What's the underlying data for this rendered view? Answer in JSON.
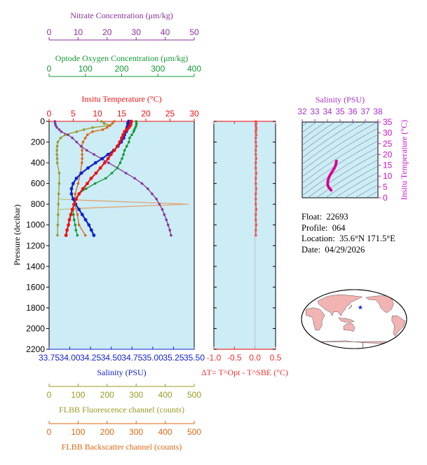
{
  "chart_data": [
    {
      "type": "line",
      "title": "",
      "ylabel": "Pressure (decibar)",
      "ylim": [
        0,
        2200
      ],
      "yticks": [
        0,
        200,
        400,
        600,
        800,
        1000,
        1200,
        1400,
        1600,
        1800,
        2000,
        2200
      ],
      "axes": {
        "temperature": {
          "label": "Insitu Temperature (°C)",
          "range": [
            0,
            30
          ],
          "ticks": [
            0,
            5,
            10,
            15,
            20,
            25,
            30
          ],
          "color": "#ee1111"
        },
        "oxygen": {
          "label": "Optode Oxygen Concentration (μm/kg)",
          "range": [
            0,
            400
          ],
          "ticks": [
            0,
            100,
            200,
            300,
            400
          ],
          "color": "#119933"
        },
        "nitrate": {
          "label": "Nitrate Concentration (μm/kg)",
          "range": [
            0,
            50
          ],
          "ticks": [
            0,
            10,
            20,
            30,
            40,
            50
          ],
          "color": "#883399"
        },
        "salinity": {
          "label": "Salinity (PSU)",
          "range": [
            33.75,
            35.5
          ],
          "ticks": [
            "33.75",
            "34.00",
            "34.25",
            "34.50",
            "34.75",
            "35.00",
            "35.25",
            "35.50"
          ],
          "color": "#1122cc"
        },
        "fluorescence": {
          "label": "FLBB Fluorescence channel (counts)",
          "range": [
            0,
            500
          ],
          "ticks": [
            0,
            100,
            200,
            300,
            400,
            500
          ],
          "color": "#999922"
        },
        "backscatter": {
          "label": "FLBB Backscatter channel (counts)",
          "range": [
            0,
            500
          ],
          "ticks": [
            0,
            100,
            200,
            300,
            400,
            500
          ],
          "color": "#dd6611"
        }
      },
      "series": [
        {
          "axis": "temperature",
          "color": "#ee1111",
          "values": [
            [
              17.0,
              0
            ],
            [
              16.9,
              20
            ],
            [
              16.8,
              40
            ],
            [
              16.5,
              60
            ],
            [
              16.0,
              80
            ],
            [
              15.6,
              100
            ],
            [
              15.3,
              130
            ],
            [
              15.0,
              160
            ],
            [
              14.6,
              200
            ],
            [
              14.1,
              240
            ],
            [
              13.5,
              280
            ],
            [
              12.8,
              320
            ],
            [
              12.2,
              360
            ],
            [
              11.5,
              400
            ],
            [
              10.6,
              450
            ],
            [
              9.7,
              500
            ],
            [
              8.7,
              550
            ],
            [
              7.9,
              600
            ],
            [
              7.0,
              650
            ],
            [
              6.2,
              700
            ],
            [
              5.6,
              750
            ],
            [
              5.2,
              800
            ],
            [
              4.8,
              850
            ],
            [
              4.5,
              900
            ],
            [
              4.2,
              950
            ],
            [
              4.0,
              1000
            ],
            [
              3.7,
              1050
            ],
            [
              3.5,
              1100
            ]
          ]
        },
        {
          "axis": "salinity",
          "color": "#1122cc",
          "values": [
            [
              34.71,
              0
            ],
            [
              34.7,
              20
            ],
            [
              34.7,
              40
            ],
            [
              34.69,
              60
            ],
            [
              34.69,
              80
            ],
            [
              34.68,
              100
            ],
            [
              34.66,
              130
            ],
            [
              34.65,
              160
            ],
            [
              34.62,
              200
            ],
            [
              34.58,
              240
            ],
            [
              34.53,
              280
            ],
            [
              34.46,
              320
            ],
            [
              34.39,
              360
            ],
            [
              34.31,
              400
            ],
            [
              34.22,
              450
            ],
            [
              34.14,
              500
            ],
            [
              34.08,
              550
            ],
            [
              34.04,
              600
            ],
            [
              34.02,
              650
            ],
            [
              34.02,
              700
            ],
            [
              34.04,
              750
            ],
            [
              34.07,
              800
            ],
            [
              34.11,
              850
            ],
            [
              34.15,
              900
            ],
            [
              34.19,
              950
            ],
            [
              34.23,
              1000
            ],
            [
              34.26,
              1050
            ],
            [
              34.29,
              1100
            ]
          ]
        },
        {
          "axis": "oxygen",
          "color": "#119933",
          "values": [
            [
              240,
              0
            ],
            [
              241,
              20
            ],
            [
              240,
              40
            ],
            [
              238,
              60
            ],
            [
              235,
              80
            ],
            [
              233,
              100
            ],
            [
              228,
              130
            ],
            [
              222,
              160
            ],
            [
              220,
              200
            ],
            [
              214,
              240
            ],
            [
              208,
              280
            ],
            [
              205,
              320
            ],
            [
              201,
              360
            ],
            [
              196,
              400
            ],
            [
              188,
              450
            ],
            [
              173,
              500
            ],
            [
              156,
              550
            ],
            [
              127,
              600
            ],
            [
              102,
              650
            ],
            [
              82,
              700
            ],
            [
              72,
              750
            ],
            [
              67,
              800
            ],
            [
              66,
              850
            ],
            [
              67,
              900
            ],
            [
              69,
              950
            ],
            [
              72,
              1000
            ],
            [
              74,
              1050
            ],
            [
              78,
              1100
            ]
          ]
        },
        {
          "axis": "nitrate",
          "color": "#883399",
          "values": [
            [
              2.0,
              0
            ],
            [
              2.1,
              20
            ],
            [
              2.3,
              40
            ],
            [
              2.7,
              60
            ],
            [
              3.5,
              80
            ],
            [
              4.2,
              100
            ],
            [
              6.5,
              130
            ],
            [
              8.0,
              160
            ],
            [
              9.5,
              200
            ],
            [
              11.0,
              240
            ],
            [
              13.0,
              280
            ],
            [
              15.5,
              320
            ],
            [
              18.0,
              360
            ],
            [
              20.5,
              400
            ],
            [
              23.5,
              450
            ],
            [
              26.5,
              500
            ],
            [
              29.5,
              550
            ],
            [
              32.0,
              600
            ],
            [
              34.0,
              650
            ],
            [
              35.5,
              700
            ],
            [
              37.0,
              750
            ],
            [
              38.0,
              800
            ],
            [
              39.0,
              850
            ],
            [
              39.7,
              900
            ],
            [
              40.4,
              950
            ],
            [
              41.0,
              1000
            ],
            [
              41.6,
              1050
            ],
            [
              42.0,
              1100
            ]
          ]
        },
        {
          "axis": "fluorescence",
          "color": "#999922",
          "values": [
            [
              180,
              0
            ],
            [
              190,
              20
            ],
            [
              210,
              40
            ],
            [
              150,
              60
            ],
            [
              120,
              80
            ],
            [
              95,
              100
            ],
            [
              55,
              130
            ],
            [
              40,
              160
            ],
            [
              30,
              200
            ],
            [
              28,
              240
            ],
            [
              27,
              280
            ],
            [
              27,
              320
            ],
            [
              28,
              360
            ],
            [
              28,
              400
            ],
            [
              35,
              500
            ],
            [
              35,
              600
            ],
            [
              33,
              700
            ],
            [
              32,
              800
            ],
            [
              31,
              900
            ],
            [
              30,
              1000
            ],
            [
              29,
              1100
            ]
          ]
        },
        {
          "axis": "backscatter",
          "color": "#dd6611",
          "values": [
            [
              225,
              0
            ],
            [
              218,
              20
            ],
            [
              210,
              40
            ],
            [
              200,
              60
            ],
            [
              185,
              80
            ],
            [
              150,
              100
            ],
            [
              132,
              130
            ],
            [
              125,
              160
            ],
            [
              117,
              200
            ],
            [
              112,
              240
            ],
            [
              114,
              280
            ],
            [
              114,
              320
            ],
            [
              114,
              360
            ],
            [
              113,
              400
            ],
            [
              108,
              500
            ],
            [
              100,
              600
            ],
            [
              90,
              700
            ],
            [
              88,
              800
            ],
            [
              98,
              900
            ],
            [
              103,
              1000
            ],
            [
              125,
              1100
            ]
          ]
        }
      ],
      "flbb_spike": {
        "pressure": 800,
        "fluorescence": 480
      }
    },
    {
      "type": "scatter",
      "xlabel": "ΔT= T^Opt - T^SBE (°C)",
      "xlim": [
        -1.0,
        0.5
      ],
      "xticks": [
        "-1.0",
        "-0.5",
        "0.0",
        "0.5"
      ],
      "color": "#ee5555",
      "dT_depths": [
        0,
        20,
        40,
        60,
        80,
        100,
        130,
        160,
        200,
        240,
        280,
        320,
        360,
        400,
        450,
        500,
        550,
        600,
        650,
        700,
        750,
        800,
        850,
        900,
        950,
        1000,
        1050,
        1100
      ],
      "dT_values": [
        0.02,
        0.03,
        0.02,
        0.03,
        0.03,
        0.02,
        0.03,
        0.02,
        0.02,
        0.03,
        0.02,
        0.02,
        0.03,
        0.02,
        0.02,
        0.03,
        0.02,
        0.02,
        0.03,
        0.02,
        0.02,
        0.02,
        0.03,
        0.02,
        0.02,
        0.03,
        0.02,
        0.02
      ]
    },
    {
      "type": "scatter",
      "title": "Salinity (PSU)",
      "xlabel": "Salinity (PSU)",
      "ylabel": "Insitu Temperature (°C)",
      "xlim": [
        32,
        38
      ],
      "ylim": [
        0,
        35
      ],
      "xticks": [
        "32",
        "33",
        "34",
        "35",
        "36",
        "37",
        "38"
      ],
      "yticks": [
        "0",
        "5",
        "10",
        "15",
        "20",
        "25",
        "30",
        "35"
      ],
      "color": "#ee11aa",
      "x": [
        34.71,
        34.7,
        34.69,
        34.66,
        34.62,
        34.53,
        34.39,
        34.31,
        34.22,
        34.14,
        34.08,
        34.04,
        34.02,
        34.02,
        34.04,
        34.07,
        34.11,
        34.15,
        34.19,
        34.23,
        34.26,
        34.29
      ],
      "y": [
        17.0,
        16.8,
        16.0,
        15.3,
        14.6,
        13.5,
        12.2,
        11.5,
        10.6,
        9.7,
        8.7,
        7.9,
        7.0,
        6.2,
        5.6,
        5.2,
        4.8,
        4.5,
        4.2,
        4.0,
        3.7,
        3.5
      ]
    }
  ],
  "info": {
    "float_label": "Float:",
    "float": "22693",
    "profile_label": "Profile:",
    "profile": "064",
    "location_label": "Location:",
    "location": "35.6°N 171.5°E",
    "date_label": "Date:",
    "date": "04/29/2026"
  },
  "map": {
    "ocean_color": "#ffffff",
    "land_color": "#f2b3b3",
    "marker_color": "#1133dd",
    "marker_lon": 171.5,
    "marker_lat": 35.6
  }
}
